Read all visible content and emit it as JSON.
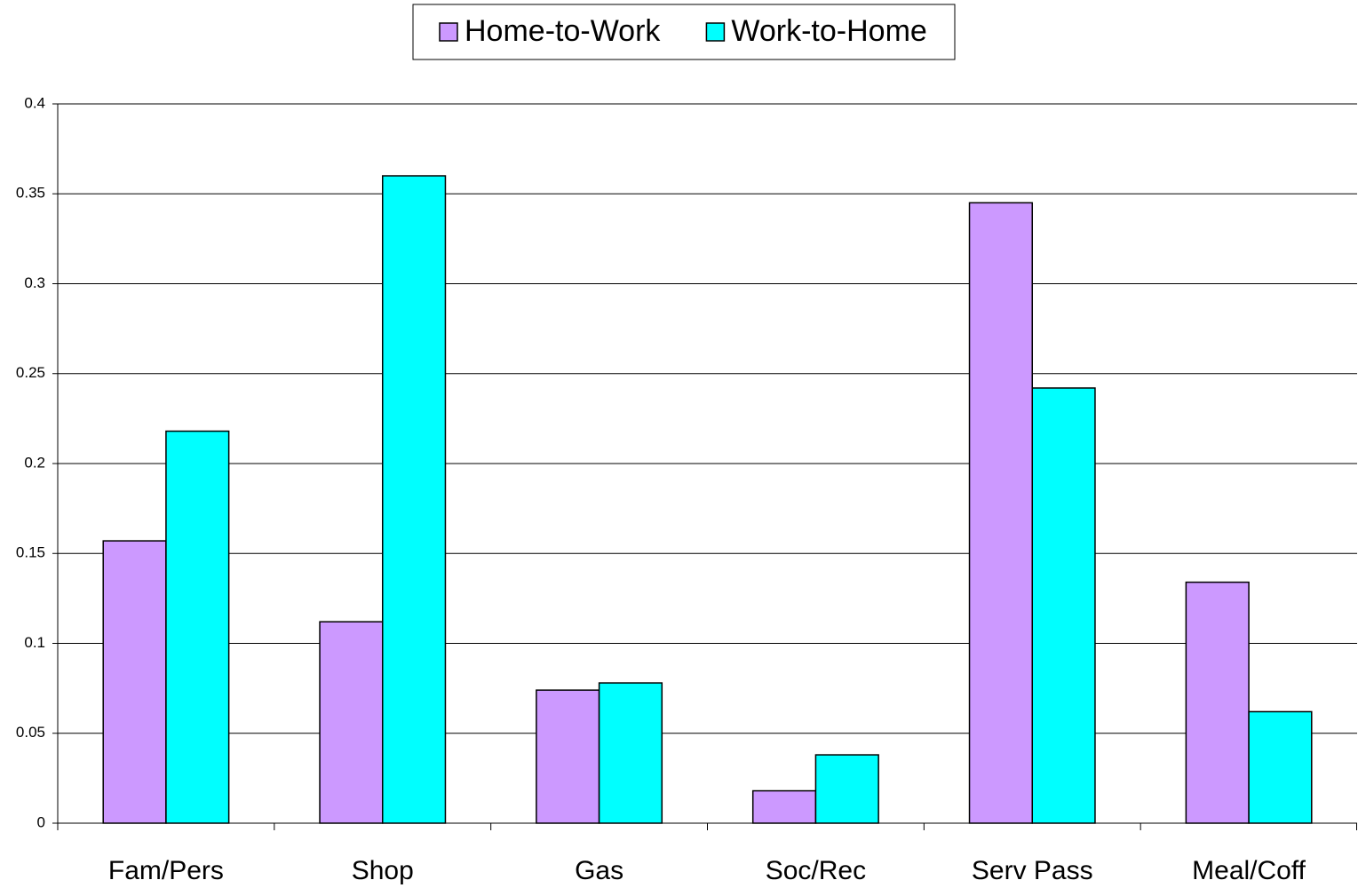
{
  "chart_data": {
    "type": "bar",
    "categories": [
      "Fam/Pers",
      "Shop",
      "Gas",
      "Soc/Rec",
      "Serv Pass",
      "Meal/Coff"
    ],
    "series": [
      {
        "name": "Home-to-Work",
        "color": "#cc99ff",
        "values": [
          0.157,
          0.112,
          0.074,
          0.018,
          0.345,
          0.134
        ]
      },
      {
        "name": "Work-to-Home",
        "color": "#00ffff",
        "values": [
          0.218,
          0.36,
          0.078,
          0.038,
          0.242,
          0.062
        ]
      }
    ],
    "ylim": [
      0,
      0.4
    ],
    "yticks": [
      0,
      0.05,
      0.1,
      0.15,
      0.2,
      0.25,
      0.3,
      0.35,
      0.4
    ],
    "grid": true,
    "legend": "top"
  }
}
